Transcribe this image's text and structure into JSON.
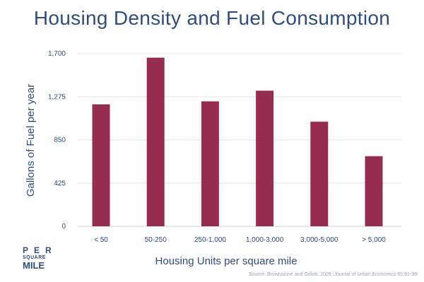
{
  "chart_data": {
    "type": "bar",
    "title": "Housing Density and Fuel Consumption",
    "xlabel": "Housing Units per square mile",
    "ylabel": "Gallons of Fuel per year",
    "categories": [
      "< 50",
      "50-250",
      "250-1,000",
      "1,000-3,000",
      "3,000-5,000",
      "> 5,000"
    ],
    "values": [
      1200,
      1660,
      1230,
      1335,
      1030,
      690
    ],
    "ylim": [
      0,
      1700
    ],
    "yticks": [
      0,
      425,
      850,
      1275,
      1700
    ],
    "ytick_labels": [
      "0",
      "425",
      "850",
      "1,275",
      "1,700"
    ],
    "grid": true,
    "bar_color": "#962d51"
  },
  "source": {
    "prefix": "Source: Brownstone and Golob, 2009, ",
    "journal": "Journal of Urban Economics",
    "suffix": " 65:91-98."
  },
  "logo": {
    "line1": "PER",
    "line2": "SQUARE",
    "line3": "MILE"
  }
}
